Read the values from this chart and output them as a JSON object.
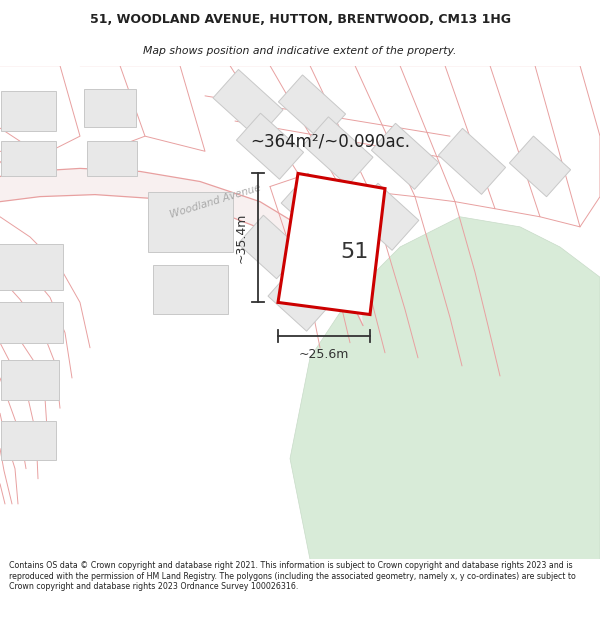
{
  "title_line1": "51, WOODLAND AVENUE, HUTTON, BRENTWOOD, CM13 1HG",
  "title_line2": "Map shows position and indicative extent of the property.",
  "area_text": "~364m²/~0.090ac.",
  "label_number": "51",
  "dim_vertical": "~35.4m",
  "dim_horizontal": "~25.6m",
  "road_label": "Woodland Avenue",
  "footer_text": "Contains OS data © Crown copyright and database right 2021. This information is subject to Crown copyright and database rights 2023 and is reproduced with the permission of HM Land Registry. The polygons (including the associated geometry, namely x, y co-ordinates) are subject to Crown copyright and database rights 2023 Ordnance Survey 100026316.",
  "map_bg": "#ffffff",
  "title_bg": "#ffffff",
  "footer_bg": "#ffffff",
  "plot_line_color": "#e8a0a0",
  "building_fill": "#e8e8e8",
  "building_edge": "#c8c8c8",
  "road_fill": "#f8f0f0",
  "road_edge": "#e0a0a0",
  "highlight_edge": "#cc0000",
  "highlight_fill": "#ffffff",
  "green_fill": "#d8ebd8",
  "green_edge": "#c8dbc8",
  "dim_color": "#333333",
  "text_color": "#333333",
  "road_label_color": "#aaaaaa",
  "title_color": "#222222"
}
